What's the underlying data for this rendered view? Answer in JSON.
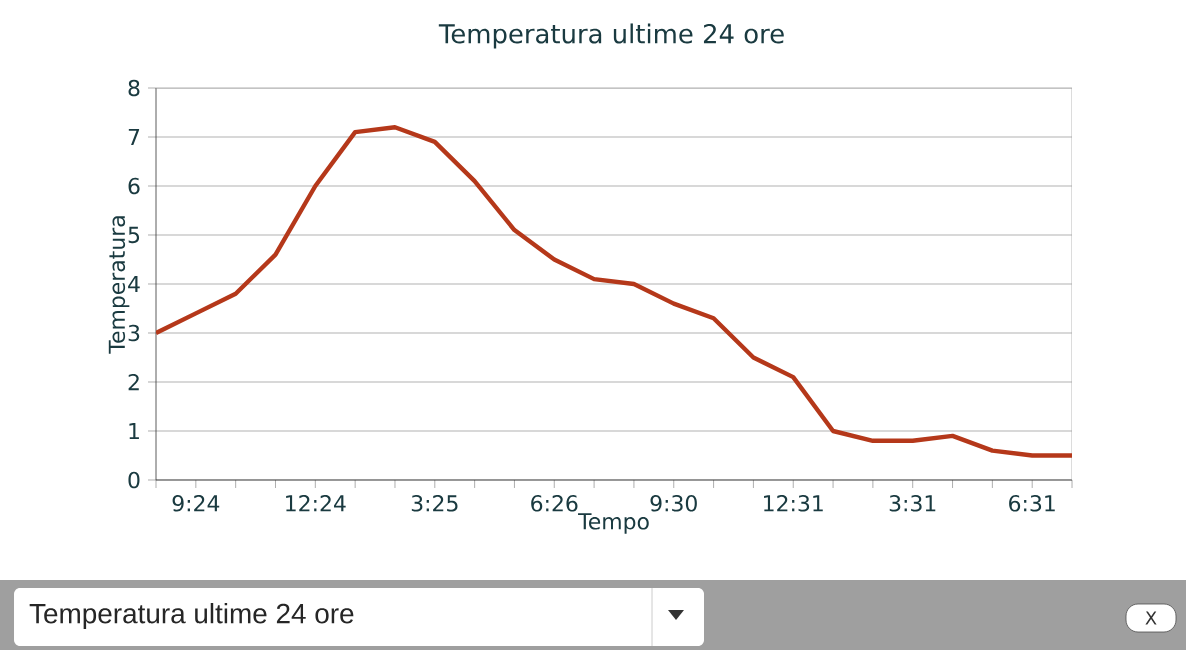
{
  "chart_data": {
    "type": "line",
    "title": "Temperatura ultime 24 ore",
    "xlabel": "Tempo",
    "ylabel": "Temperatura",
    "categories": [
      null,
      "9:24",
      null,
      null,
      "12:24",
      null,
      null,
      "3:25",
      null,
      null,
      "6:26",
      null,
      null,
      "9:30",
      null,
      null,
      "12:31",
      null,
      null,
      "3:31",
      null,
      null,
      "6:31",
      null
    ],
    "series": [
      {
        "color": "#b5381a",
        "values": [
          3.0,
          3.4,
          3.8,
          4.6,
          6.0,
          7.1,
          7.2,
          6.9,
          6.1,
          5.1,
          4.5,
          4.1,
          4.0,
          3.6,
          3.3,
          2.5,
          2.1,
          1.0,
          0.8,
          0.8,
          0.9,
          0.6,
          0.5,
          0.5
        ]
      }
    ],
    "ylim": [
      0,
      8
    ],
    "yticks": [
      0,
      1,
      2,
      3,
      4,
      5,
      6,
      7,
      8
    ],
    "grid": "y",
    "marker": "none",
    "line_style": "solid",
    "annotations": [
      "Temperatura ultime 24 ore",
      "X"
    ]
  }
}
